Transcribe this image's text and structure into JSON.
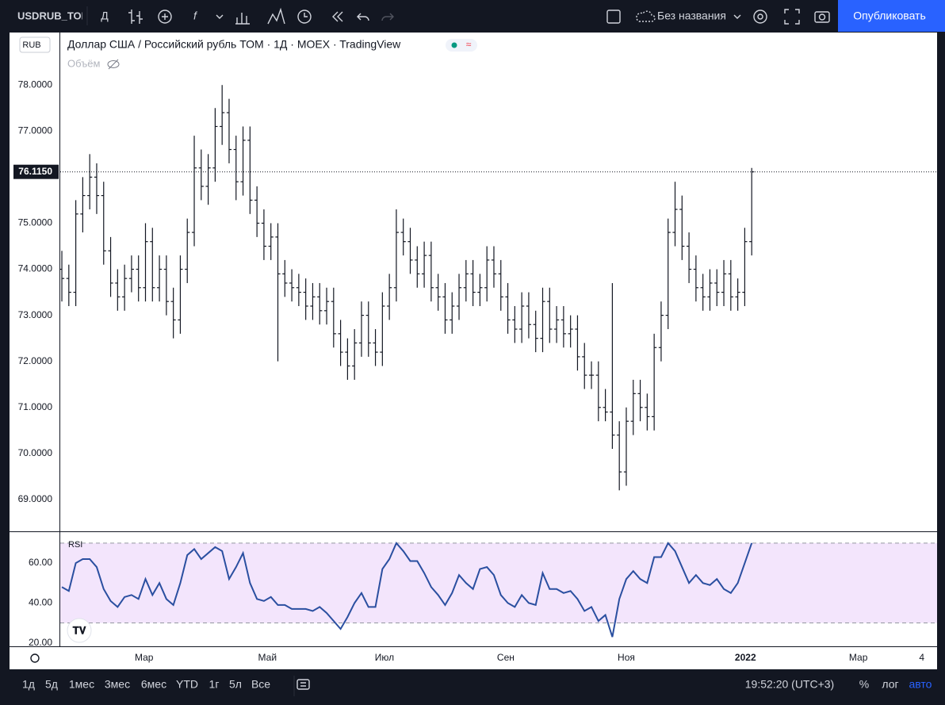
{
  "toolbar": {
    "symbol": "USDRUB_TOM",
    "interval": "Д",
    "layout_name": "Без названия",
    "publish": "Опубликовать"
  },
  "bottom_bar": {
    "ranges": [
      "1д",
      "5д",
      "1мес",
      "3мес",
      "6мес",
      "YTD",
      "1г",
      "5л",
      "Все"
    ],
    "clock": "19:52:20 (UTC+3)",
    "percent": "%",
    "log": "лог",
    "auto": "авто"
  },
  "chart_data": [
    {
      "type": "ohlc",
      "title": "Доллар США / Российский рубль ТОМ · 1Д · MOEX · TradingView",
      "volume_label": "Объём",
      "currency": "RUB",
      "color": "#131722",
      "open": [
        74.0,
        73.8,
        73.5,
        75.2,
        75.6,
        76.0,
        75.6,
        74.4,
        73.7,
        73.4,
        73.8,
        74.0,
        73.6,
        74.6,
        73.6,
        74.0,
        73.3,
        72.9,
        74.0,
        74.8,
        76.2,
        75.8,
        76.2,
        77.1,
        77.4,
        76.6,
        75.9,
        76.8,
        75.5,
        75.0,
        74.5,
        74.7,
        73.9,
        73.7,
        73.6,
        73.5,
        73.2,
        73.4,
        73.1,
        73.3,
        72.6,
        72.2,
        71.9,
        72.4,
        73.0,
        72.4,
        72.2,
        73.2,
        73.6,
        74.8,
        74.6,
        74.2,
        73.9,
        74.3,
        73.6,
        73.4,
        72.9,
        73.2,
        73.6,
        73.9,
        73.5,
        73.6,
        74.2,
        73.9,
        73.4,
        72.9,
        72.7,
        73.2,
        72.8,
        72.5,
        73.3,
        72.7,
        72.9,
        72.6,
        72.7,
        72.1,
        71.7,
        71.7,
        71.0,
        70.9,
        70.4,
        69.6,
        70.7,
        71.3,
        71.0,
        70.8,
        72.3,
        73.0,
        74.8,
        75.3,
        74.5,
        74.0,
        73.6,
        73.4,
        73.7,
        73.5,
        73.9,
        73.4,
        73.5,
        74.6
      ],
      "high": [
        74.4,
        74.1,
        75.5,
        76.0,
        76.5,
        76.3,
        75.9,
        74.7,
        74.0,
        74.1,
        74.3,
        74.3,
        75.0,
        74.9,
        74.3,
        74.3,
        73.6,
        74.3,
        75.1,
        76.9,
        76.6,
        76.5,
        77.5,
        78.0,
        77.7,
        76.9,
        77.1,
        77.1,
        75.8,
        75.3,
        75.0,
        75.0,
        74.2,
        74.0,
        73.9,
        73.8,
        73.7,
        73.7,
        73.6,
        73.6,
        72.9,
        72.5,
        72.7,
        73.3,
        73.3,
        72.7,
        73.5,
        73.9,
        75.3,
        75.1,
        74.9,
        74.5,
        74.6,
        74.6,
        73.9,
        73.7,
        73.5,
        73.9,
        74.2,
        74.2,
        73.9,
        74.5,
        74.5,
        74.2,
        73.7,
        73.2,
        73.5,
        73.5,
        73.1,
        73.6,
        73.6,
        73.2,
        73.2,
        73.0,
        73.0,
        72.4,
        72.0,
        72.0,
        71.4,
        73.7,
        70.7,
        71.0,
        71.6,
        71.6,
        71.3,
        72.6,
        73.3,
        75.1,
        75.9,
        75.6,
        74.8,
        74.3,
        73.9,
        74.0,
        74.0,
        74.2,
        74.2,
        73.8,
        74.9,
        76.2
      ],
      "low": [
        73.3,
        73.2,
        73.2,
        74.8,
        75.3,
        75.2,
        74.1,
        73.4,
        73.1,
        73.1,
        73.5,
        73.3,
        73.3,
        73.3,
        73.3,
        73.0,
        72.5,
        72.6,
        73.7,
        74.5,
        75.5,
        75.4,
        75.9,
        76.7,
        76.3,
        75.5,
        75.6,
        75.2,
        74.7,
        74.2,
        74.2,
        72.0,
        73.4,
        73.3,
        73.2,
        72.9,
        72.9,
        72.8,
        72.8,
        72.3,
        71.9,
        71.6,
        71.6,
        72.1,
        72.1,
        71.9,
        71.9,
        72.9,
        73.3,
        74.3,
        73.9,
        73.6,
        73.6,
        73.3,
        73.1,
        72.6,
        72.6,
        72.9,
        73.3,
        73.2,
        73.2,
        73.3,
        73.6,
        73.1,
        72.6,
        72.4,
        72.4,
        72.5,
        72.2,
        72.2,
        72.4,
        72.4,
        72.3,
        72.3,
        71.8,
        71.4,
        71.4,
        70.7,
        70.7,
        70.1,
        69.2,
        69.3,
        70.4,
        70.7,
        70.5,
        70.5,
        72.0,
        72.7,
        74.5,
        74.2,
        73.7,
        73.3,
        73.1,
        73.1,
        73.2,
        73.2,
        73.1,
        73.1,
        73.2,
        74.3
      ],
      "close": [
        73.8,
        73.5,
        75.2,
        75.6,
        76.0,
        75.6,
        74.4,
        73.7,
        73.4,
        73.8,
        74.0,
        73.6,
        74.6,
        73.6,
        74.0,
        73.3,
        72.9,
        74.0,
        74.8,
        76.2,
        75.8,
        76.2,
        77.1,
        77.4,
        76.6,
        75.9,
        76.8,
        75.5,
        75.0,
        74.5,
        74.7,
        73.9,
        73.7,
        73.6,
        73.5,
        73.2,
        73.4,
        73.1,
        73.3,
        72.6,
        72.2,
        71.9,
        72.4,
        73.0,
        72.4,
        72.2,
        73.2,
        73.6,
        74.8,
        74.6,
        74.2,
        73.9,
        74.3,
        73.6,
        73.4,
        72.9,
        73.2,
        73.6,
        73.9,
        73.5,
        73.6,
        74.2,
        73.9,
        73.4,
        72.9,
        72.7,
        73.2,
        72.8,
        72.5,
        73.3,
        72.7,
        72.9,
        72.6,
        72.7,
        72.1,
        71.7,
        71.7,
        71.0,
        70.9,
        70.4,
        69.6,
        70.7,
        71.3,
        71.0,
        70.8,
        72.3,
        73.0,
        74.8,
        75.3,
        74.5,
        74.0,
        73.6,
        73.4,
        73.7,
        73.5,
        73.9,
        73.4,
        73.5,
        74.6,
        76.115
      ],
      "last_price_label": "76.1150",
      "ylim": [
        68.31,
        79.14
      ],
      "yticks": [
        {
          "value": 69,
          "label": "69.0000"
        },
        {
          "value": 70,
          "label": "70.0000"
        },
        {
          "value": 71,
          "label": "71.0000"
        },
        {
          "value": 72,
          "label": "72.0000"
        },
        {
          "value": 73,
          "label": "73.0000"
        },
        {
          "value": 74,
          "label": "74.0000"
        },
        {
          "value": 75,
          "label": "75.0000"
        },
        {
          "value": 77,
          "label": "77.0000"
        },
        {
          "value": 78,
          "label": "78.0000"
        }
      ],
      "xlim": [
        -0.23,
        125.6
      ],
      "xticks": [
        {
          "value": 11.8,
          "label": "Мар"
        },
        {
          "value": 29.5,
          "label": "Май"
        },
        {
          "value": 46.3,
          "label": "Июл"
        },
        {
          "value": 63.7,
          "label": "Сен"
        },
        {
          "value": 81.0,
          "label": "Ноя"
        },
        {
          "value": 98.1,
          "label": "2022"
        },
        {
          "value": 114.3,
          "label": "Мар"
        },
        {
          "value": 123.4,
          "label": "4"
        }
      ]
    },
    {
      "type": "line",
      "name": "RSI",
      "color": "#2a4fa0",
      "band_color": "#f3e5fc",
      "values": [
        48,
        46,
        60,
        62,
        62,
        58,
        47,
        41,
        38,
        43,
        44,
        42,
        52,
        44,
        50,
        42,
        39,
        50,
        64,
        67,
        62,
        65,
        68,
        66,
        52,
        58,
        65,
        50,
        42,
        41,
        43,
        39,
        39,
        37,
        37,
        37,
        36,
        38,
        35,
        31,
        27,
        33,
        40,
        45,
        38,
        38,
        57,
        62,
        70,
        66,
        61,
        61,
        55,
        48,
        44,
        39,
        45,
        54,
        50,
        47,
        57,
        58,
        54,
        44,
        40,
        38,
        44,
        40,
        39,
        55,
        47,
        47,
        45,
        46,
        42,
        36,
        38,
        31,
        34,
        23,
        42,
        52,
        56,
        52,
        50,
        63,
        63,
        70,
        66,
        58,
        50,
        54,
        50,
        49,
        52,
        47,
        45,
        50,
        60,
        70
      ],
      "bands": [
        30,
        70
      ],
      "ylim": [
        18.3,
        75.5
      ],
      "yticks": [
        {
          "value": 20,
          "label": "20.00"
        },
        {
          "value": 40,
          "label": "40.00"
        },
        {
          "value": 60,
          "label": "60.00"
        }
      ]
    }
  ]
}
